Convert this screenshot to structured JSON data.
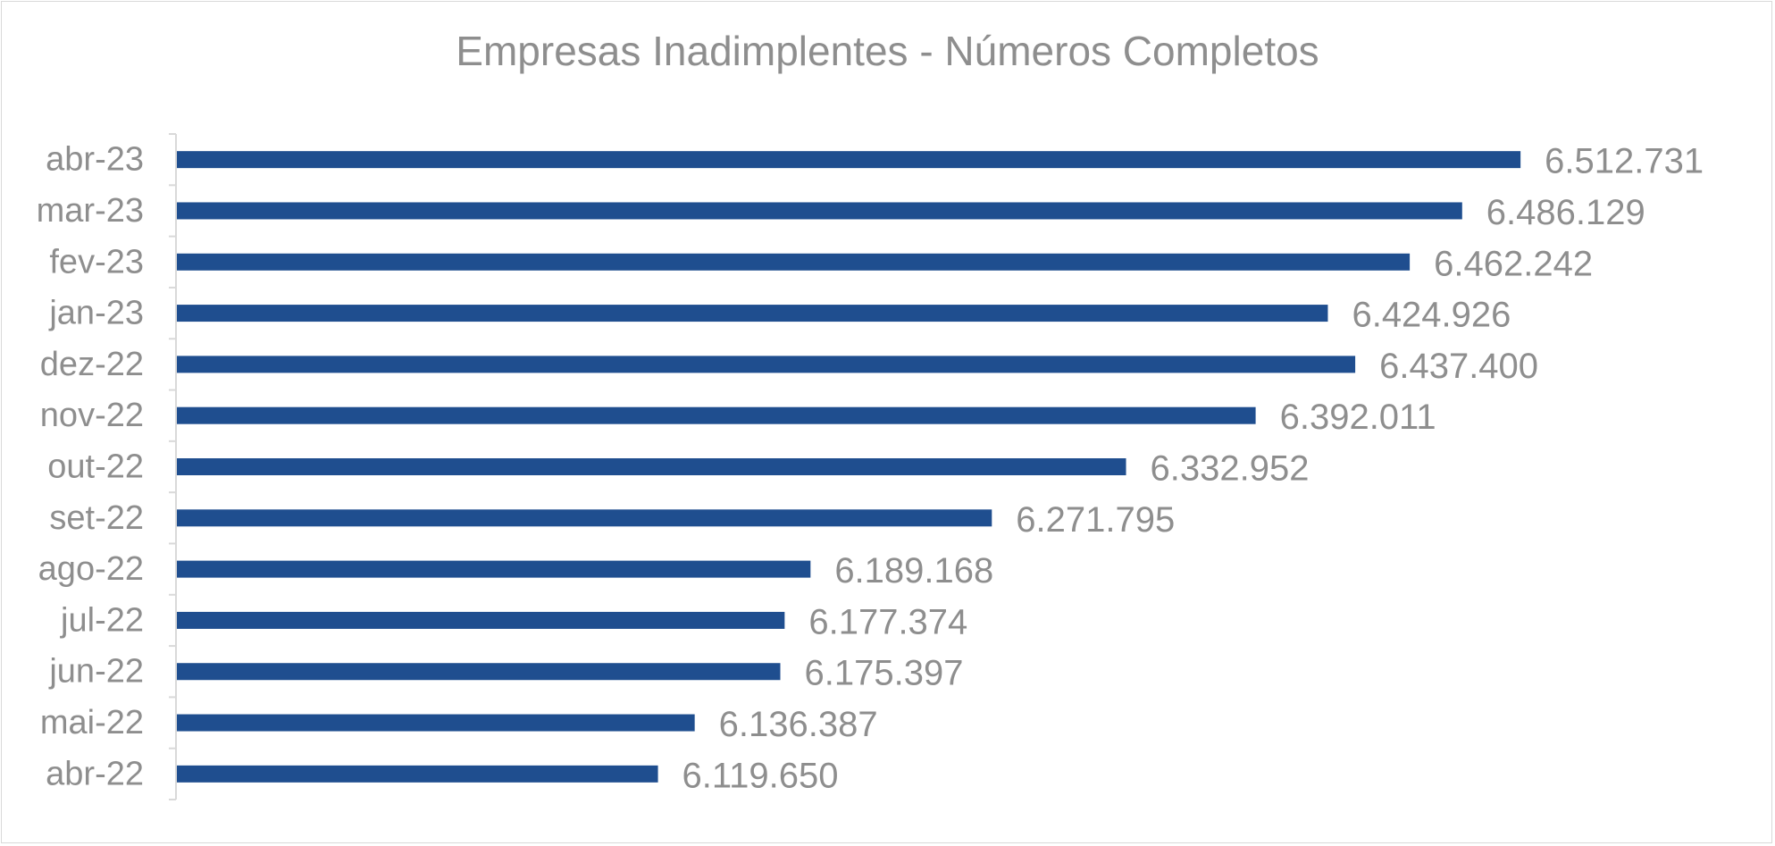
{
  "chart_data": {
    "type": "bar",
    "orientation": "horizontal",
    "title": "Empresas Inadimplentes - Números Completos",
    "xlabel": "",
    "ylabel": "",
    "categories": [
      "abr-23",
      "mar-23",
      "fev-23",
      "jan-23",
      "dez-22",
      "nov-22",
      "out-22",
      "set-22",
      "ago-22",
      "jul-22",
      "jun-22",
      "mai-22",
      "abr-22"
    ],
    "values": [
      6512731,
      6486129,
      6462242,
      6424926,
      6437400,
      6392011,
      6332952,
      6271795,
      6189168,
      6177374,
      6175397,
      6136387,
      6119650
    ],
    "value_labels": [
      "6.512.731",
      "6.486.129",
      "6.462.242",
      "6.424.926",
      "6.437.400",
      "6.392.011",
      "6.332.952",
      "6.271.795",
      "6.189.168",
      "6.177.374",
      "6.175.397",
      "6.136.387",
      "6.119.650"
    ],
    "xlim": [
      5900000,
      6520000
    ],
    "grid": false,
    "legend": "none",
    "bar_color": "#1f4e8f"
  }
}
